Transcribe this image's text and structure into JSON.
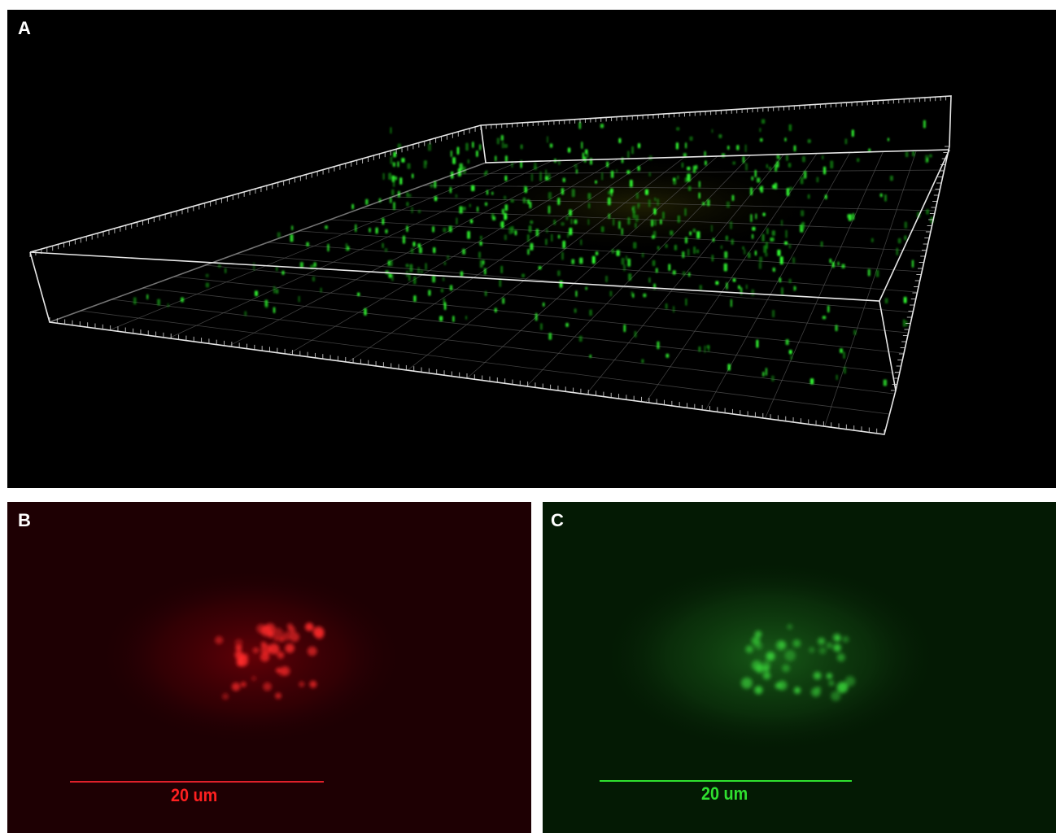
{
  "figure": {
    "panels": [
      {
        "label": "A",
        "content": "3D confocal rendering, green fluorescent particles in bounding box"
      },
      {
        "label": "B",
        "scale_bar": "20 um",
        "channel_color": "#ff2020"
      },
      {
        "label": "C",
        "scale_bar": "20 um",
        "channel_color": "#2fe02f"
      }
    ]
  },
  "colors": {
    "background": "#ffffff",
    "panel_a_bg": "#000000",
    "panel_b_bg": "#1e0003",
    "panel_c_bg": "#041a04",
    "box_lines": "#e8e8e8",
    "particle_green": "#22ff22"
  }
}
